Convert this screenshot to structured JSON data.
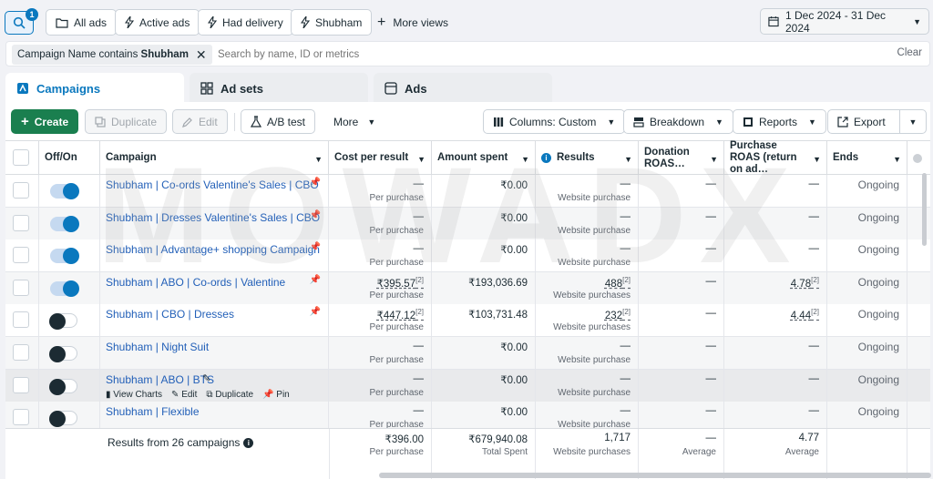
{
  "viewbar": {
    "search_badge": "1",
    "views": [
      "All ads",
      "Active ads",
      "Had delivery",
      "Shubham"
    ],
    "more_views": "More views",
    "date_range": "1 Dec 2024 - 31 Dec 2024"
  },
  "filter": {
    "chip_prefix": "Campaign Name contains",
    "chip_value": "Shubham",
    "search_placeholder": "Search by name, ID or metrics",
    "clear": "Clear"
  },
  "tabs": [
    "Campaigns",
    "Ad sets",
    "Ads"
  ],
  "toolbar": {
    "create": "Create",
    "duplicate": "Duplicate",
    "edit": "Edit",
    "ab_test": "A/B test",
    "more": "More",
    "columns": "Columns: Custom",
    "breakdown": "Breakdown",
    "reports": "Reports",
    "export": "Export"
  },
  "columns": {
    "off_on": "Off/On",
    "campaign": "Campaign",
    "cost_per_result": "Cost per result",
    "amount_spent": "Amount spent",
    "results": "Results",
    "donation_roas": "Donation ROAS…",
    "purchase_roas": "Purchase ROAS (return on ad…",
    "ends": "Ends"
  },
  "rows": [
    {
      "name": "Shubham | Co-ords Valentine's Sales | CBO",
      "on": true,
      "pinned": true,
      "cost": "—",
      "cost_sub": "Per purchase",
      "amount": "₹0.00",
      "results": "—",
      "results_sub": "Website purchase",
      "donation": "—",
      "roas": "—",
      "ends": "Ongoing"
    },
    {
      "name": "Shubham | Dresses Valentine's Sales | CBO",
      "on": true,
      "pinned": true,
      "cost": "—",
      "cost_sub": "Per purchase",
      "amount": "₹0.00",
      "results": "—",
      "results_sub": "Website purchase",
      "donation": "—",
      "roas": "—",
      "ends": "Ongoing"
    },
    {
      "name": "Shubham | Advantage+ shopping Campaign",
      "on": true,
      "pinned": true,
      "cost": "—",
      "cost_sub": "Per purchase",
      "amount": "₹0.00",
      "results": "—",
      "results_sub": "Website purchase",
      "donation": "—",
      "roas": "—",
      "ends": "Ongoing"
    },
    {
      "name": "Shubham | ABO | Co-ords | Valentine",
      "on": true,
      "pinned": true,
      "cost": "₹395.57",
      "cost_sub": "Per purchase",
      "amount": "₹193,036.69",
      "results": "488",
      "results_sub": "Website purchases",
      "donation": "—",
      "roas": "4.78",
      "ends": "Ongoing"
    },
    {
      "name": "Shubham | CBO | Dresses",
      "on": false,
      "pinned": true,
      "cost": "₹447.12",
      "cost_sub": "Per purchase",
      "amount": "₹103,731.48",
      "results": "232",
      "results_sub": "Website purchases",
      "donation": "—",
      "roas": "4.44",
      "ends": "Ongoing"
    },
    {
      "name": "Shubham | Night Suit",
      "on": false,
      "pinned": false,
      "cost": "—",
      "cost_sub": "Per purchase",
      "amount": "₹0.00",
      "results": "—",
      "results_sub": "Website purchase",
      "donation": "—",
      "roas": "—",
      "ends": "Ongoing"
    },
    {
      "name": "Shubham | ABO | BTS",
      "on": false,
      "pinned": false,
      "cost": "—",
      "cost_sub": "Per purchase",
      "amount": "₹0.00",
      "results": "—",
      "results_sub": "Website purchase",
      "donation": "—",
      "roas": "—",
      "ends": "Ongoing"
    },
    {
      "name": "Shubham | Flexible",
      "on": false,
      "pinned": false,
      "cost": "—",
      "cost_sub": "Per purchase",
      "amount": "₹0.00",
      "results": "—",
      "results_sub": "Website purchase",
      "donation": "—",
      "roas": "—",
      "ends": "Ongoing"
    }
  ],
  "row_actions": [
    "View Charts",
    "Edit",
    "Duplicate",
    "Pin"
  ],
  "summary": {
    "label": "Results from 26 campaigns",
    "cost": "₹396.00",
    "cost_sub": "Per purchase",
    "amount": "₹679,940.08",
    "amount_sub": "Total Spent",
    "results": "1,717",
    "results_sub": "Website purchases",
    "donation": "—",
    "donation_sub": "Average",
    "roas": "4.77",
    "roas_sub": "Average"
  },
  "sup_mark": "[2]",
  "watermark": "MOWADX",
  "colors": {
    "accent": "#0a78be",
    "create": "#1a7f4f",
    "link": "#2360b8"
  }
}
